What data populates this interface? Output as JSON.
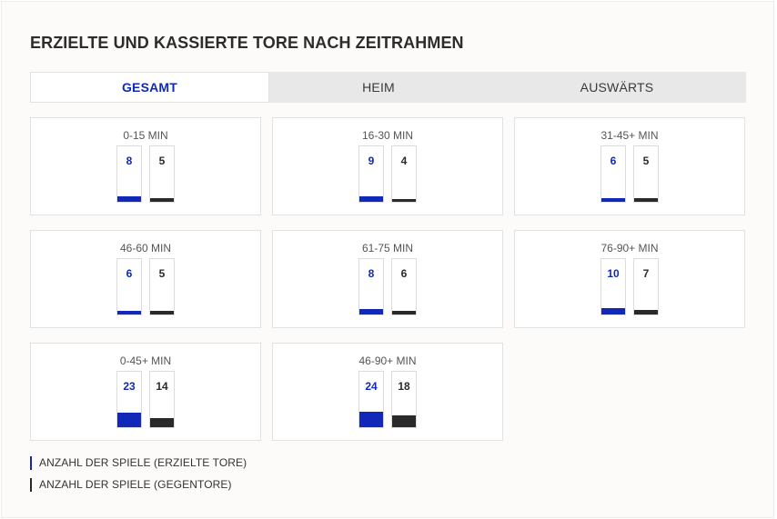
{
  "title": "ERZIELTE UND KASSIERTE TORE NACH ZEITRAHMEN",
  "tabs": [
    {
      "label": "GESAMT",
      "active": true
    },
    {
      "label": "HEIM",
      "active": false
    },
    {
      "label": "AUSWÄRTS",
      "active": false
    }
  ],
  "colors": {
    "scored": "#1228b8",
    "conceded": "#2a2a2a"
  },
  "chart_data": {
    "type": "bar",
    "categories": [
      "0-15 MIN",
      "16-30 MIN",
      "31-45+ MIN",
      "46-60 MIN",
      "61-75 MIN",
      "76-90+ MIN",
      "0-45+ MIN",
      "46-90+ MIN"
    ],
    "series": [
      {
        "name": "ANZAHL DER SPIELE (ERZIELTE TORE)",
        "values": [
          8,
          9,
          6,
          6,
          8,
          10,
          23,
          24
        ]
      },
      {
        "name": "ANZAHL DER SPIELE (GEGENTORE)",
        "values": [
          5,
          4,
          5,
          5,
          6,
          7,
          14,
          18
        ]
      }
    ],
    "legend": "bottom-left"
  }
}
